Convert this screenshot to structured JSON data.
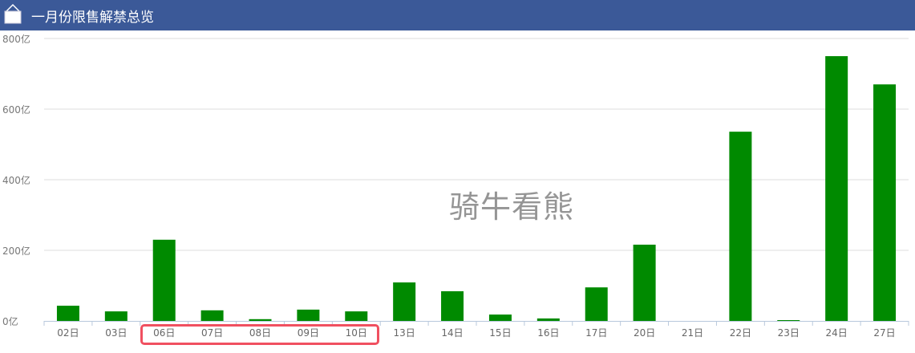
{
  "header": {
    "title": "一月份限售解禁总览",
    "icon": "frame-icon"
  },
  "watermark": "骑牛看熊",
  "highlight": {
    "color": "#f05060",
    "categories": [
      "06日",
      "10日"
    ]
  },
  "chart_data": {
    "type": "bar",
    "title": "",
    "xlabel": "",
    "ylabel": "",
    "ylim": [
      0,
      800
    ],
    "yticks": [
      "0亿",
      "200亿",
      "400亿",
      "600亿",
      "800亿"
    ],
    "ytick_values": [
      0,
      200,
      400,
      600,
      800
    ],
    "grid": true,
    "bar_color": "#008a00",
    "categories": [
      "02日",
      "03日",
      "06日",
      "07日",
      "08日",
      "09日",
      "10日",
      "13日",
      "14日",
      "15日",
      "16日",
      "17日",
      "20日",
      "21日",
      "22日",
      "23日",
      "24日",
      "27日"
    ],
    "values": [
      43,
      27,
      230,
      30,
      5,
      32,
      27,
      109,
      84,
      18,
      7,
      95,
      216,
      0,
      536,
      1,
      750,
      670
    ]
  }
}
